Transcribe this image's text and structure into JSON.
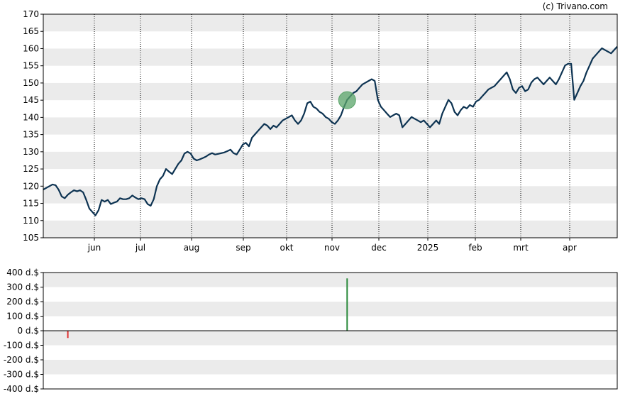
{
  "credit": "(c) Trivano.com",
  "colors": {
    "band": "#ebebeb",
    "price_line": "#0d3352",
    "marker_fill": "#5aa469",
    "buy_bar": "#2a8a3a",
    "sell_bar": "#e03030"
  },
  "chart_data": [
    {
      "type": "line",
      "title": "",
      "xlabel": "",
      "ylabel": "",
      "ylim": [
        105,
        170
      ],
      "yticks": [
        "105",
        "110",
        "115",
        "120",
        "125",
        "130",
        "135",
        "140",
        "145",
        "150",
        "155",
        "160",
        "165",
        "170"
      ],
      "xticks": [
        "jun",
        "jul",
        "aug",
        "sep",
        "okt",
        "nov",
        "dec",
        "2025",
        "feb",
        "mrt",
        "apr"
      ],
      "grid": "alternating horizontal bands, dotted vertical month lines",
      "series": [
        {
          "values": [
            119,
            119.5,
            120,
            120.5,
            120.3,
            119,
            117,
            116.5,
            117.5,
            118.2,
            118.8,
            118.5,
            118.8,
            118.2,
            116,
            113.5,
            112.5,
            111.5,
            113,
            116,
            115.5,
            116,
            114.8,
            115.2,
            115.5,
            116.5,
            116.2,
            116.2,
            116.5,
            117.3,
            116.7,
            116.2,
            116.5,
            116.2,
            114.8,
            114.3,
            116.2,
            120,
            122,
            123,
            125,
            124.2,
            123.5,
            125,
            126.5,
            127.5,
            129.5,
            130,
            129.5,
            128,
            127.5,
            127.8,
            128.2,
            128.6,
            129.2,
            129.6,
            129.2,
            129.4,
            129.6,
            129.8,
            130.2,
            130.6,
            129.6,
            129.2,
            130.6,
            132.1,
            132.6,
            131.6,
            134.1,
            135.1,
            136.1,
            137.1,
            138.1,
            137.6,
            136.6,
            137.6,
            137.1,
            138.1,
            139.1,
            139.6,
            140.1,
            140.6,
            139.1,
            138.1,
            139.1,
            141.1,
            144.1,
            144.6,
            143.1,
            142.6,
            141.6,
            141.1,
            140.1,
            139.6,
            138.6,
            138.1,
            139.1,
            140.6,
            143.1,
            145.1,
            146.1,
            147.1,
            147.6,
            148.6,
            149.6,
            150.1,
            150.6,
            151.1,
            150.6,
            145.1,
            143.1,
            142.1,
            141.1,
            140.1,
            140.6,
            141.1,
            140.6,
            137.1,
            138.1,
            139.1,
            140.1,
            139.6,
            139.1,
            138.6,
            139.1,
            138.1,
            137.1,
            138.1,
            139.1,
            138.1,
            141.1,
            143.1,
            145.1,
            144.1,
            141.6,
            140.6,
            142.1,
            143.1,
            142.6,
            143.6,
            143.1,
            144.6,
            145.1,
            146.1,
            147.1,
            148.1,
            148.6,
            149.1,
            150.1,
            151.1,
            152.1,
            153.1,
            151.1,
            148.1,
            147.1,
            148.6,
            149.1,
            147.6,
            148.1,
            150.1,
            151.1,
            151.6,
            150.6,
            149.6,
            150.6,
            151.6,
            150.6,
            149.6,
            151.1,
            153.1,
            155.1,
            155.6,
            155.6,
            145.1,
            147.1,
            149.1,
            150.6,
            153.1,
            155.1,
            157.1,
            158.1,
            159.1,
            160.1,
            159.6,
            159.1,
            158.6,
            159.6,
            160.6
          ]
        }
      ],
      "marker": {
        "index": 99,
        "value": 145
      }
    },
    {
      "type": "bar",
      "title": "",
      "xlabel": "",
      "ylabel": "",
      "ylim": [
        -400,
        400
      ],
      "yticks": [
        "-400 d.$",
        "-300 d.$",
        "-200 d.$",
        "-100 d.$",
        "0 d.$",
        "100 d.$",
        "200 d.$",
        "300 d.$",
        "400 d.$"
      ],
      "bars": [
        {
          "index": 8,
          "value": -50,
          "kind": "sell"
        },
        {
          "index": 99,
          "value": 360,
          "kind": "buy"
        }
      ]
    }
  ]
}
